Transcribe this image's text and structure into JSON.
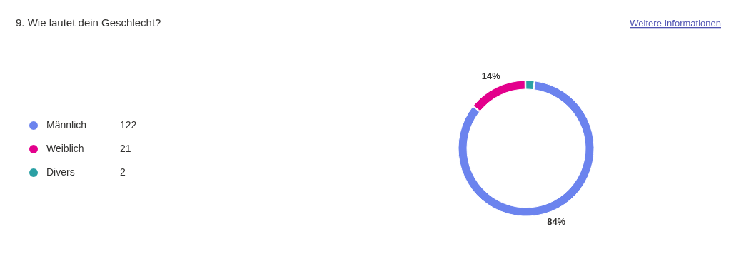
{
  "chart_data": {
    "type": "donut",
    "title": "9. Wie lautet dein Geschlecht?",
    "categories": [
      "Männlich",
      "Weiblich",
      "Divers"
    ],
    "values": [
      84,
      14,
      2
    ],
    "colors": [
      "#6b83ee",
      "#e3008c",
      "#2aa0a4"
    ],
    "value_labels": [
      "84%",
      "14%",
      null
    ],
    "legend": "left",
    "annotations": [
      "Weitere Informationen",
      "122",
      "21",
      "2"
    ]
  }
}
